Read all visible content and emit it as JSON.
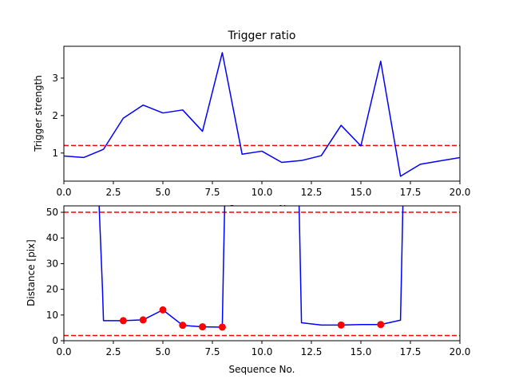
{
  "chart_data": [
    {
      "type": "line",
      "title": "Trigger ratio",
      "xlabel": "Sequence No.",
      "ylabel": "Trigger strength",
      "xlim": [
        0,
        20
      ],
      "ylim": [
        0.25,
        3.85
      ],
      "xticks": [
        0,
        2.5,
        5,
        7.5,
        10,
        12.5,
        15,
        17.5,
        20
      ],
      "xtick_labels": [
        "0.0",
        "2.5",
        "5.0",
        "7.5",
        "10.0",
        "12.5",
        "15.0",
        "17.5",
        "20.0"
      ],
      "yticks": [
        1,
        2,
        3
      ],
      "ytick_labels": [
        "1",
        "2",
        "3"
      ],
      "grid": false,
      "series": [
        {
          "color": "#0000ff",
          "style": "solid",
          "x": [
            0,
            1,
            2,
            3,
            4,
            5,
            6,
            7,
            8,
            9,
            10,
            11,
            12,
            13,
            14,
            15,
            16,
            17,
            18,
            19,
            20
          ],
          "y": [
            0.92,
            0.88,
            1.1,
            1.93,
            2.28,
            2.07,
            2.15,
            1.58,
            3.68,
            0.97,
            1.05,
            0.75,
            0.8,
            0.93,
            1.74,
            1.19,
            3.45,
            0.38,
            0.7,
            0.79,
            0.88
          ]
        }
      ],
      "hlines": [
        {
          "y": 1.2,
          "color": "#ff0000",
          "style": "dashed"
        }
      ]
    },
    {
      "type": "line",
      "title": "",
      "xlabel": "Sequence No.",
      "ylabel": "Distance [pix]",
      "xlim": [
        0,
        20
      ],
      "ylim": [
        0,
        52.5
      ],
      "xticks": [
        0,
        2.5,
        5,
        7.5,
        10,
        12.5,
        15,
        17.5,
        20
      ],
      "xtick_labels": [
        "0.0",
        "2.5",
        "5.0",
        "7.5",
        "10.0",
        "12.5",
        "15.0",
        "17.5",
        "20.0"
      ],
      "yticks": [
        0,
        10,
        20,
        30,
        40,
        50
      ],
      "ytick_labels": [
        "0",
        "10",
        "20",
        "30",
        "40",
        "50"
      ],
      "grid": false,
      "series": [
        {
          "color": "#0000ff",
          "style": "solid",
          "segments": [
            {
              "x": [
                1.78,
                1.95,
                2,
                3,
                4,
                5,
                6,
                7,
                8,
                8.06,
                8.12
              ],
              "y": [
                52.5,
                20,
                7.8,
                7.8,
                8.1,
                12.0,
                6.0,
                5.4,
                5.3,
                30,
                52.5
              ]
            },
            {
              "x": [
                11.88,
                12,
                13,
                14,
                15,
                16,
                17,
                17.06,
                17.12
              ],
              "y": [
                52.5,
                7.0,
                6.1,
                6.1,
                6.3,
                6.3,
                8.0,
                30,
                52.5
              ]
            }
          ]
        },
        {
          "type": "scatter",
          "color": "#ff0000",
          "x": [
            3,
            4,
            5,
            6,
            7,
            8,
            14,
            16
          ],
          "y": [
            7.8,
            8.1,
            12.0,
            6.0,
            5.4,
            5.3,
            6.1,
            6.3
          ]
        }
      ],
      "hlines": [
        {
          "y": 50,
          "color": "#ff0000",
          "style": "dashed"
        },
        {
          "y": 2,
          "color": "#ff0000",
          "style": "dashed"
        }
      ]
    }
  ]
}
